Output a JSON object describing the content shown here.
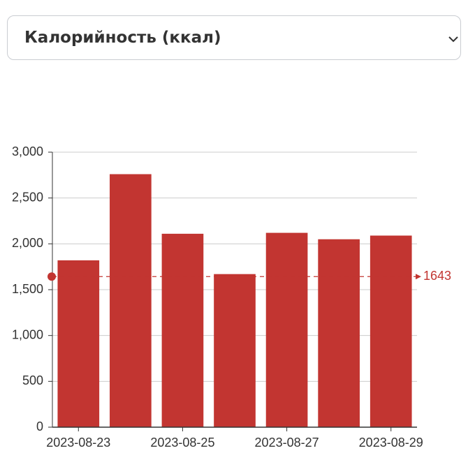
{
  "select": {
    "label": "Калорийность (ккал)"
  },
  "chart_data": {
    "type": "bar",
    "categories": [
      "2023-08-23",
      null,
      "2023-08-25",
      null,
      "2023-08-27",
      null,
      "2023-08-29"
    ],
    "values": [
      1820,
      2760,
      2110,
      1670,
      2120,
      2050,
      2090
    ],
    "color": "#c23531",
    "ylim": [
      0,
      3000
    ],
    "yticks": [
      0,
      500,
      {
        "value": 1000,
        "label": "1,000"
      },
      {
        "value": 1500,
        "label": "1,500"
      },
      {
        "value": 2000,
        "label": "2,000"
      },
      {
        "value": 2500,
        "label": "2,500"
      },
      {
        "value": 3000,
        "label": "3,000"
      }
    ],
    "grid": true,
    "mark_line": 1643
  }
}
